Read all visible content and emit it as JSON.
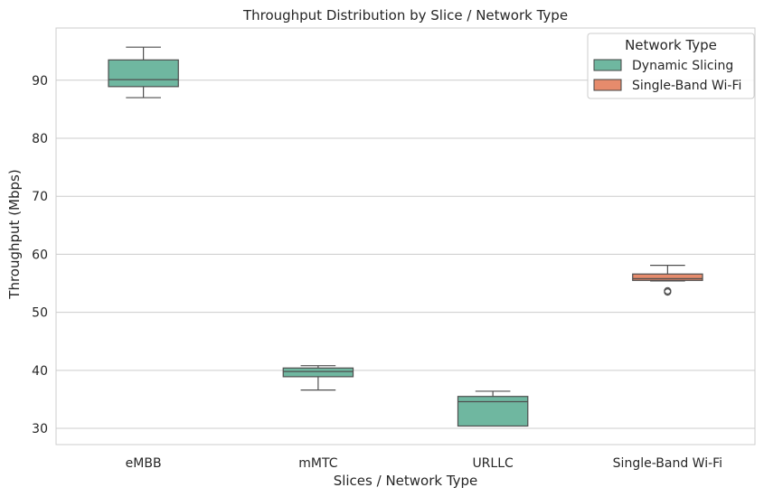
{
  "chart_data": {
    "type": "box",
    "title": "Throughput Distribution by Slice / Network Type",
    "xlabel": "Slices / Network Type",
    "ylabel": "Throughput (Mbps)",
    "ylim": [
      27.2,
      99.0
    ],
    "yticks": [
      30,
      40,
      50,
      60,
      70,
      80,
      90
    ],
    "grid": "horizontal",
    "legend": {
      "title": "Network Type",
      "placement": "top-right",
      "entries": [
        {
          "label": "Dynamic Slicing",
          "color": "#6fb7a0"
        },
        {
          "label": "Single-Band Wi-Fi",
          "color": "#e68b6c"
        }
      ]
    },
    "categories": [
      "eMBB",
      "mMTC",
      "URLLC",
      "Single-Band Wi-Fi"
    ],
    "boxes": [
      {
        "category": "eMBB",
        "series": "Dynamic Slicing",
        "whisker_low": 87.0,
        "q1": 88.9,
        "median": 90.1,
        "q3": 93.5,
        "whisker_high": 95.7,
        "outliers": []
      },
      {
        "category": "mMTC",
        "series": "Dynamic Slicing",
        "whisker_low": 36.6,
        "q1": 38.9,
        "median": 39.8,
        "q3": 40.4,
        "whisker_high": 40.8,
        "outliers": []
      },
      {
        "category": "URLLC",
        "series": "Dynamic Slicing",
        "whisker_low": 30.4,
        "q1": 30.4,
        "median": 34.6,
        "q3": 35.5,
        "whisker_high": 36.4,
        "outliers": []
      },
      {
        "category": "Single-Band Wi-Fi",
        "series": "Single-Band Wi-Fi",
        "whisker_low": 55.4,
        "q1": 55.5,
        "median": 55.8,
        "q3": 56.6,
        "whisker_high": 58.1,
        "outliers": [
          53.5,
          53.7
        ]
      }
    ]
  }
}
